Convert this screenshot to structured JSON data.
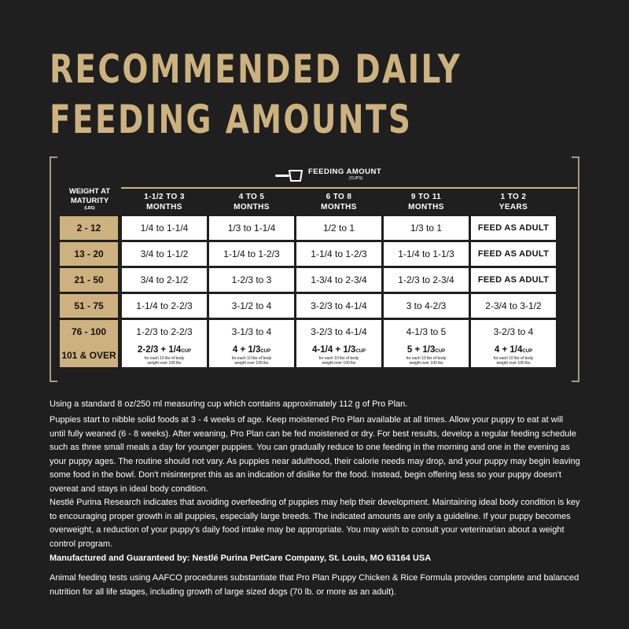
{
  "title": {
    "line1": "RECOMMENDED DAILY",
    "line2": "FEEDING AMOUNTS"
  },
  "table": {
    "feeding_label": "FEEDING AMOUNT",
    "feeding_unit": "(CUPS)",
    "weight_label_line1": "WEIGHT AT",
    "weight_label_line2": "MATURITY",
    "weight_unit": "(LBS)",
    "columns": [
      {
        "line1": "1-1/2 TO 3",
        "line2": "MONTHS"
      },
      {
        "line1": "4 TO 5",
        "line2": "MONTHS"
      },
      {
        "line1": "6 TO 8",
        "line2": "MONTHS"
      },
      {
        "line1": "9 TO 11",
        "line2": "MONTHS"
      },
      {
        "line1": "1 TO 2",
        "line2": "YEARS"
      }
    ],
    "rows": [
      {
        "weight": "2 - 12",
        "cells": [
          "1/4 to 1-1/4",
          "1/3 to 1-1/4",
          "1/2 to 1",
          "1/3 to 1",
          "FEED AS ADULT"
        ]
      },
      {
        "weight": "13 - 20",
        "cells": [
          "3/4 to 1-1/2",
          "1-1/4 to 1-2/3",
          "1-1/4 to 1-2/3",
          "1-1/4 to 1-1/3",
          "FEED AS ADULT"
        ]
      },
      {
        "weight": "21 - 50",
        "cells": [
          "3/4 to 2-1/2",
          "1-2/3 to 3",
          "1-3/4 to 2-3/4",
          "1-2/3 to 2-3/4",
          "FEED AS ADULT"
        ]
      },
      {
        "weight": "51 - 75",
        "cells": [
          "1-1/4 to 2-2/3",
          "3-1/2 to 4",
          "3-2/3 to 4-1/4",
          "3 to 4-2/3",
          "2-3/4 to 3-1/2"
        ]
      },
      {
        "weight": "76 - 100",
        "cells": [
          "1-2/3 to 2-2/3",
          "3-1/3 to 4",
          "3-2/3 to 4-1/4",
          "4-1/3 to 5",
          "3-2/3 to 4"
        ]
      }
    ],
    "last_row": {
      "weight": "101 & OVER",
      "cup_label": "CUP",
      "note_line1": "for each 10 lbs of body",
      "note_line2": "weight over 100 lbs",
      "cells": [
        "2-2/3 + 1/4",
        "4 + 1/3",
        "4-1/4 + 1/3",
        "5 + 1/3",
        "4 + 1/4"
      ]
    }
  },
  "text": {
    "p1": "Using a standard 8 oz/250 ml measuring cup which contains approximately 112 g of Pro Plan.",
    "p2": "Puppies start to nibble solid foods at 3 - 4 weeks of age. Keep moistened Pro Plan available at all times. Allow your puppy to eat at will until fully weaned (6 - 8 weeks). After weaning, Pro Plan can be fed moistened or dry. For best results, develop a regular feeding schedule such as three small meals a day for younger puppies. You can gradually reduce to one feeding in the morning and one in the evening as your puppy ages. The routine should not vary. As puppies near adulthood, their calorie needs may drop, and your puppy may begin leaving some food in the bowl. Don't misinterpret this as an indication of dislike for the food. Instead, begin offering less so your puppy doesn't overeat and stays in ideal body condition.",
    "p3": "Nestlé Purina Research indicates that avoiding overfeeding of puppies may help their development. Maintaining ideal body condition is key to encouraging proper growth in all puppies, especially large breeds. The indicated amounts are only a guideline. If your puppy becomes overweight, a reduction of your puppy's daily food intake may be appropriate. You may wish to consult your veterinarian about a weight control program.",
    "p4": "Manufactured and Guaranteed by: Nestlé Purina PetCare Company, St. Louis, MO 63164 USA",
    "p5": "Animal feeding tests using AAFCO procedures substantiate that Pro Plan Puppy Chicken & Rice Formula provides complete and balanced nutrition for all life stages, including growth of large sized dogs (70 lb. or more as an adult)."
  }
}
